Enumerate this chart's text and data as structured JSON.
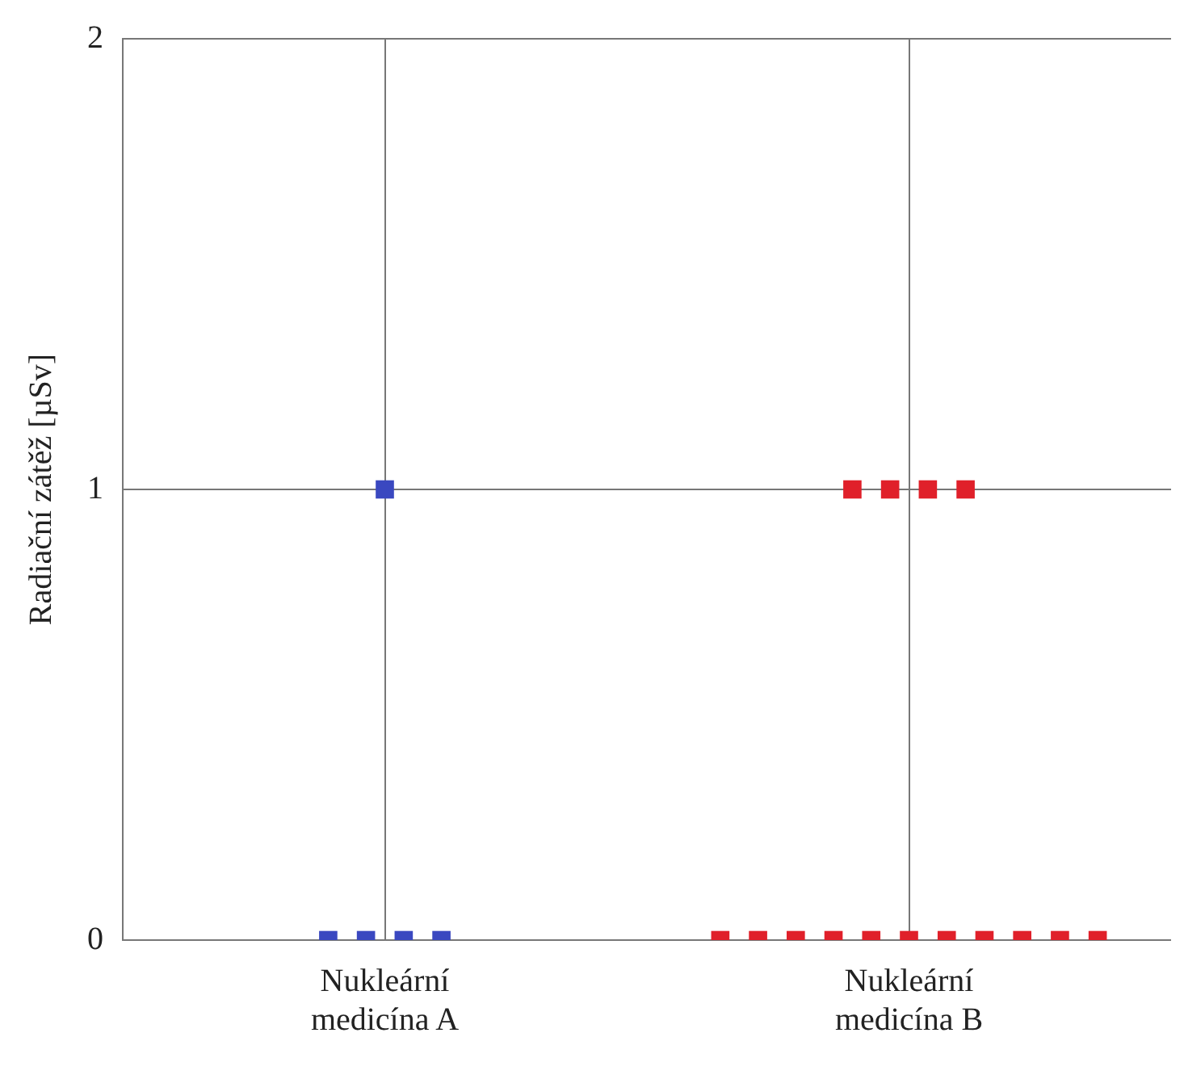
{
  "chart_data": {
    "type": "scatter",
    "ylabel": "Radiační zátěž [µSv]",
    "categories": [
      "Nukleární medicína A",
      "Nukleární medicína B"
    ],
    "series": [
      {
        "color": "#3a48c0",
        "x": [
          "Nukleární medicína A",
          "Nukleární medicína A",
          "Nukleární medicína A",
          "Nukleární medicína A",
          "Nukleární medicína A"
        ],
        "values": [
          1,
          0,
          0,
          0,
          0
        ]
      },
      {
        "color": "#e0202a",
        "x": [
          "Nukleární medicína B",
          "Nukleární medicína B",
          "Nukleární medicína B",
          "Nukleární medicína B",
          "Nukleární medicína B",
          "Nukleární medicína B",
          "Nukleární medicína B",
          "Nukleární medicína B",
          "Nukleární medicína B",
          "Nukleární medicína B",
          "Nukleární medicína B",
          "Nukleární medicína B",
          "Nukleární medicína B",
          "Nukleární medicína B",
          "Nukleární medicína B"
        ],
        "values": [
          1,
          1,
          1,
          1,
          0,
          0,
          0,
          0,
          0,
          0,
          0,
          0,
          0,
          0,
          0
        ]
      }
    ],
    "ylim": [
      0,
      2
    ],
    "yticks": [
      0,
      1,
      2
    ],
    "grid": true,
    "legend": false,
    "marker": "square"
  }
}
